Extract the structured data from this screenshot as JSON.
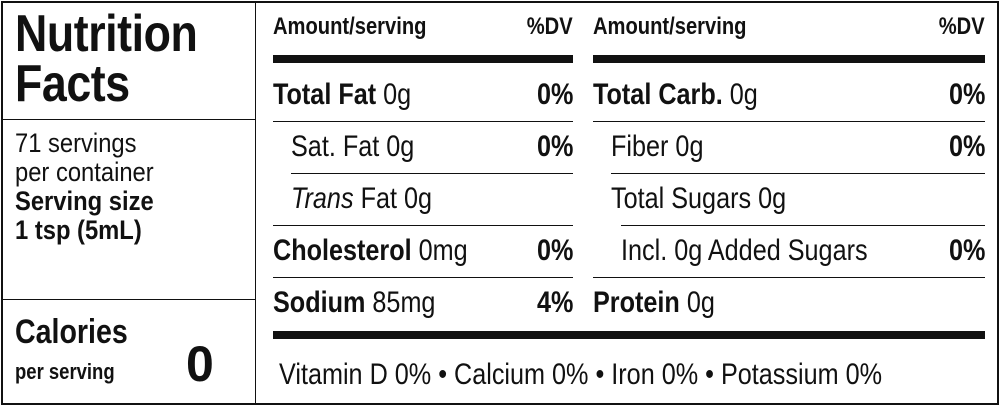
{
  "panel": {
    "title_line1": "Nutrition",
    "title_line2": "Facts",
    "servings_line1": "71 servings",
    "servings_line2": "per container",
    "serving_size_label": "Serving size",
    "serving_size_value": "1 tsp (5mL)",
    "calories_label": "Calories",
    "calories_sub": "per serving",
    "calories_value": "0"
  },
  "columns": [
    {
      "header_amount": "Amount/serving",
      "header_dv": "%DV",
      "rows": [
        {
          "name": "Total Fat",
          "amount": "0g",
          "dv": "0%"
        },
        {
          "name": "Sat. Fat",
          "amount": "0g",
          "dv": "0%"
        },
        {
          "name_italic": "Trans",
          "name": "Fat",
          "amount": "0g",
          "dv": ""
        },
        {
          "name": "Cholesterol",
          "amount": "0mg",
          "dv": "0%"
        },
        {
          "name": "Sodium",
          "amount": "85mg",
          "dv": "4%"
        }
      ]
    },
    {
      "header_amount": "Amount/serving",
      "header_dv": "%DV",
      "rows": [
        {
          "name": "Total Carb.",
          "amount": "0g",
          "dv": "0%"
        },
        {
          "name": "Fiber",
          "amount": "0g",
          "dv": "0%"
        },
        {
          "name": "Total Sugars",
          "amount": "0g",
          "dv": ""
        },
        {
          "name": "Incl. 0g Added Sugars",
          "amount": "",
          "dv": "0%"
        },
        {
          "name": "Protein",
          "amount": "0g",
          "dv": ""
        }
      ]
    }
  ],
  "vitamins": "Vitamin D 0% • Calcium 0% • Iron 0% • Potassium 0%"
}
